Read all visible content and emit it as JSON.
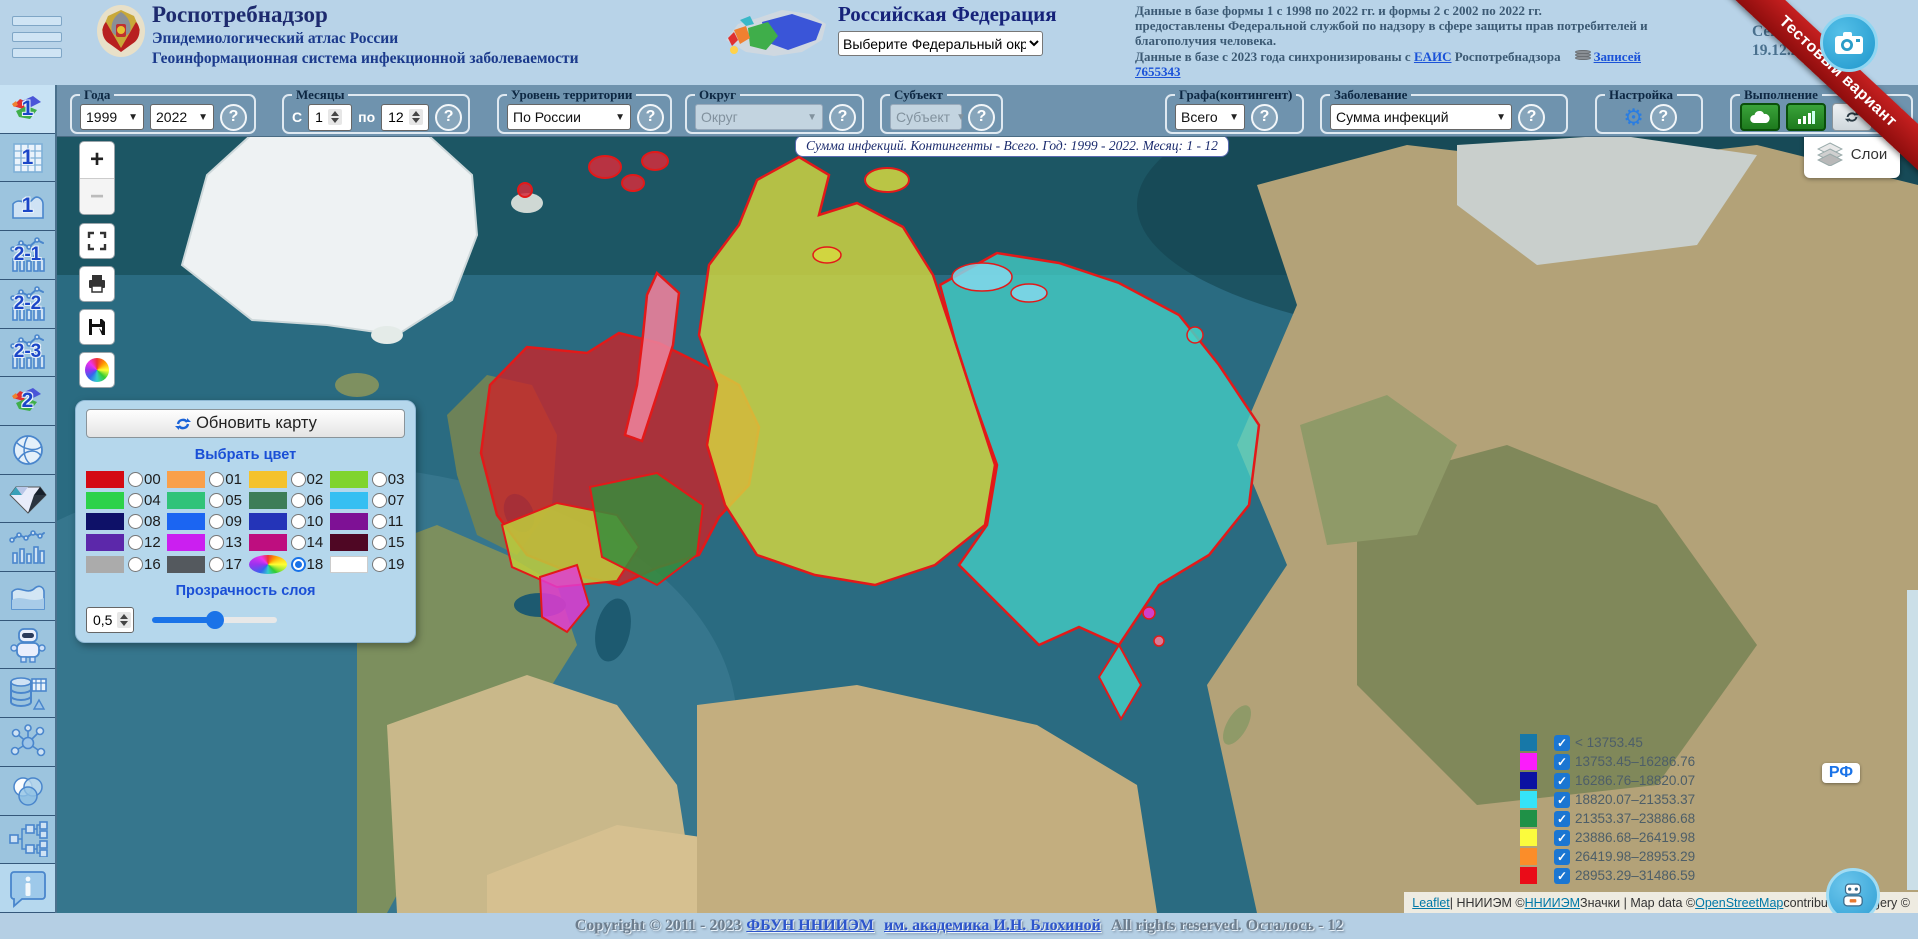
{
  "header": {
    "brand": {
      "title": "Роспотребнадзор",
      "line1": "Эпидемиологический атлас России",
      "line2": "Геоинформационная система инфекционной заболеваемости"
    },
    "federation": {
      "title": "Российская Федерация",
      "district_select": "Выберите Федеральный округ"
    },
    "info": {
      "line1": "Данные в базе формы 1 с 1998 по 2022 гг. и формы 2 с 2002 по 2022 гг.",
      "line2": "предоставлены Федеральной службой по надзору в сфере защиты прав потребителей и",
      "line3": "благополучия человека.",
      "line4_prefix": "Данные в базе с 2023 года синхронизированы с ",
      "eais_link": "ЕАИС",
      "line4_suffix": " Роспотребнадзора",
      "records_link": "Записей 7655343"
    },
    "today_label": "Сегодня",
    "today_date": "19.12.22",
    "ribbon": "Тестовый вариант"
  },
  "filters": {
    "help": "?",
    "years": {
      "legend": "Года",
      "from": "1999",
      "to": "2022"
    },
    "months": {
      "legend": "Месяцы",
      "prefix": "С",
      "from": "1",
      "infix": "по",
      "to": "12"
    },
    "territory": {
      "legend": "Уровень территории",
      "value": "По России"
    },
    "okrug": {
      "legend": "Округ",
      "placeholder": "Округ"
    },
    "subject": {
      "legend": "Субъект",
      "placeholder": "Субъект"
    },
    "cohort": {
      "legend": "Графа(контингент)",
      "value": "Всего"
    },
    "disease": {
      "legend": "Заболевание",
      "value": "Сумма инфекций"
    },
    "settings": {
      "legend": "Настройка"
    },
    "execution": {
      "legend": "Выполнение"
    }
  },
  "sidebar": {
    "items": [
      {
        "id": "map-1",
        "badge": "1"
      },
      {
        "id": "table-1",
        "badge": "1"
      },
      {
        "id": "area-1",
        "badge": "1"
      },
      {
        "id": "chart-2-1",
        "badge": "2-1"
      },
      {
        "id": "chart-2-2",
        "badge": "2-2"
      },
      {
        "id": "chart-2-3",
        "badge": "2-3"
      },
      {
        "id": "map-2",
        "badge": "2"
      },
      {
        "id": "globe"
      },
      {
        "id": "diamond"
      },
      {
        "id": "line-bar-chart"
      },
      {
        "id": "area-chart"
      },
      {
        "id": "robot"
      },
      {
        "id": "database-export"
      },
      {
        "id": "network"
      },
      {
        "id": "venn"
      },
      {
        "id": "tree"
      },
      {
        "id": "info"
      }
    ]
  },
  "map": {
    "status": "Сумма инфекций. Контингенты - Всего. Год: 1999 - 2022. Месяц: 1 - 12",
    "zoom_in": "+",
    "zoom_out": "−",
    "layers_label": "Слои",
    "rf_badge": "РФ"
  },
  "color_panel": {
    "update_button": "Обновить карту",
    "choose_color_label": "Выбрать цвет",
    "selected_swatch": "18",
    "swatches": [
      {
        "id": "00",
        "color": "#d40a14"
      },
      {
        "id": "01",
        "color": "#f9a04a"
      },
      {
        "id": "02",
        "color": "#f4c22c"
      },
      {
        "id": "03",
        "color": "#80d42e"
      },
      {
        "id": "04",
        "color": "#2cd24a"
      },
      {
        "id": "05",
        "color": "#30c379"
      },
      {
        "id": "06",
        "color": "#3d7d57"
      },
      {
        "id": "07",
        "color": "#36bff2"
      },
      {
        "id": "08",
        "color": "#0e1168"
      },
      {
        "id": "09",
        "color": "#1b65f2"
      },
      {
        "id": "10",
        "color": "#2434b8"
      },
      {
        "id": "11",
        "color": "#7e1195"
      },
      {
        "id": "12",
        "color": "#5c28aa"
      },
      {
        "id": "13",
        "color": "#cb1ff0"
      },
      {
        "id": "14",
        "color": "#be0e7f"
      },
      {
        "id": "15",
        "color": "#4f0724"
      },
      {
        "id": "16",
        "color": "#ababab"
      },
      {
        "id": "17",
        "color": "#54595e"
      },
      {
        "id": "18",
        "color": "wheel"
      },
      {
        "id": "19",
        "color": "#ffffff"
      }
    ],
    "opacity_label": "Прозрачность слоя",
    "opacity_value": "0,5"
  },
  "legend": {
    "items": [
      {
        "color": "#1778a8",
        "label": "< 13753.45"
      },
      {
        "color": "#fb1cfb",
        "label": "13753.45–16286.76"
      },
      {
        "color": "#0b11a2",
        "label": "16286.76–18820.07"
      },
      {
        "color": "#35e3f8",
        "label": "18820.07–21353.37"
      },
      {
        "color": "#1f9147",
        "label": "21353.37–23886.68"
      },
      {
        "color": "#fbfb3d",
        "label": "23886.68–26419.98"
      },
      {
        "color": "#fb8d29",
        "label": "26419.98–28953.29"
      },
      {
        "color": "#ea0c18",
        "label": "28953.29–31486.59"
      }
    ]
  },
  "attribution": {
    "leaflet": "Leaflet",
    "sep1": " | ННИИЭМ © ",
    "nniiem": "ННИИЭМ",
    "sep2": " Значки | Map data © ",
    "osm": "OpenStreetMap",
    "tail": " contributors,Imagery ©"
  },
  "footer": {
    "prefix": "Copyright © 2011 - 2023",
    "link1": "ФБУН ННИИЭМ",
    "link2": "им. академика И.Н. Блохиной",
    "suffix": "All rights reserved. Осталось - 12"
  }
}
